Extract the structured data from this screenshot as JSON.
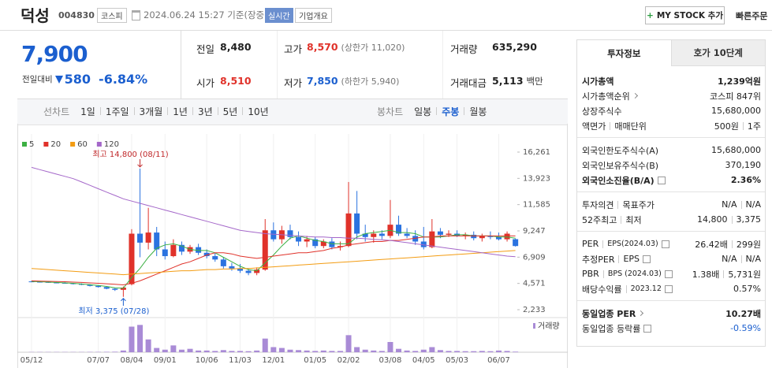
{
  "header": {
    "name": "덕성",
    "code": "004830",
    "market": "코스피",
    "datetime": "2024.06.24 15:27 기준(장중)",
    "realtime": "실시간",
    "overview": "기업개요",
    "mystock": "MY STOCK 추가",
    "quick_order": "빠른주문"
  },
  "price": {
    "current": "7,900",
    "change_label": "전일대비",
    "change": "580",
    "change_pct": "-6.84%"
  },
  "summary": [
    [
      {
        "label": "전일",
        "value": "8,480"
      },
      {
        "label": "고가",
        "value": "8,570",
        "color": "#e0322a",
        "note": "(상한가 11,020)"
      },
      {
        "label": "거래량",
        "value": "635,290"
      }
    ],
    [
      {
        "label": "시가",
        "value": "8,510",
        "color": "#e0322a"
      },
      {
        "label": "저가",
        "value": "7,850",
        "color": "#1b5fcf",
        "note": "(하한가 5,940)"
      },
      {
        "label": "거래대금",
        "value": "5,113",
        "unit": "백만"
      }
    ]
  ],
  "chart_tabs": {
    "line": [
      "선차트",
      "1일",
      "1주일",
      "3개월",
      "1년",
      "3년",
      "5년",
      "10년"
    ],
    "candle": [
      "봉차트",
      "일봉",
      "주봉",
      "월봉"
    ],
    "selected_candle": 2
  },
  "chart_data": {
    "type": "candlestick",
    "categories": [
      "05/12",
      null,
      null,
      null,
      null,
      null,
      null,
      null,
      "07/07",
      null,
      null,
      null,
      "08/04",
      null,
      null,
      null,
      "09/01",
      null,
      null,
      null,
      null,
      "10/06",
      null,
      null,
      null,
      "11/03",
      null,
      null,
      null,
      "12/01",
      null,
      null,
      null,
      null,
      "01/05",
      null,
      null,
      null,
      "02/02",
      null,
      null,
      null,
      null,
      "03/08",
      null,
      null,
      null,
      "04/05",
      null,
      null,
      null,
      "05/03",
      null,
      null,
      null,
      null,
      "06/07",
      null,
      null
    ],
    "open": [
      4750,
      4720,
      4700,
      4650,
      4620,
      4580,
      4520,
      4450,
      4350,
      4250,
      4100,
      4000,
      4500,
      9000,
      8200,
      9100,
      7600,
      7000,
      8000,
      7400,
      7800,
      7300,
      7000,
      6700,
      6100,
      5900,
      5700,
      5500,
      5800,
      9300,
      8500,
      9300,
      8700,
      8300,
      8500,
      7900,
      8300,
      7800,
      7900,
      10800,
      9000,
      8700,
      9000,
      8800,
      9800,
      9000,
      8800,
      8300,
      7800,
      9200,
      8900,
      9000,
      8800,
      8900,
      8600,
      8800,
      8700,
      8500,
      8510
    ],
    "high": [
      4800,
      4780,
      4760,
      4700,
      4680,
      4620,
      4580,
      4500,
      4400,
      4300,
      4150,
      4300,
      9400,
      14800,
      11300,
      9600,
      8300,
      8500,
      8300,
      8000,
      8100,
      7600,
      7300,
      6900,
      6400,
      6300,
      5900,
      6000,
      10300,
      10000,
      9700,
      9800,
      9200,
      8800,
      8700,
      8500,
      8600,
      8300,
      13600,
      12800,
      9800,
      9300,
      9300,
      12000,
      10600,
      9500,
      9300,
      9600,
      10300,
      9500,
      9300,
      9300,
      9100,
      9200,
      9000,
      9200,
      9100,
      9200,
      8570
    ],
    "low": [
      4680,
      4650,
      4620,
      4580,
      4550,
      4480,
      4420,
      4300,
      4200,
      4050,
      3900,
      3375,
      4400,
      6900,
      7600,
      7000,
      6700,
      6900,
      7100,
      7200,
      7100,
      6800,
      6500,
      5900,
      5700,
      5500,
      5300,
      5300,
      5700,
      8300,
      8100,
      8500,
      7900,
      7800,
      7700,
      7700,
      7600,
      7500,
      7800,
      8500,
      8300,
      8200,
      8500,
      8600,
      8800,
      8600,
      8000,
      7600,
      7700,
      8600,
      8700,
      8700,
      8500,
      8400,
      8300,
      8500,
      8400,
      8300,
      7850
    ],
    "close": [
      4720,
      4700,
      4650,
      4620,
      4580,
      4520,
      4450,
      4350,
      4250,
      4100,
      4000,
      4200,
      9000,
      8200,
      9100,
      7600,
      7000,
      8000,
      7400,
      7800,
      7300,
      7000,
      6700,
      6100,
      5900,
      5700,
      5500,
      5800,
      9300,
      8500,
      9300,
      8700,
      8300,
      8500,
      7900,
      8300,
      7800,
      7900,
      10800,
      9000,
      8700,
      9000,
      8800,
      9800,
      9000,
      8800,
      8300,
      7800,
      9200,
      8900,
      9000,
      8800,
      8900,
      8600,
      8800,
      8700,
      8500,
      9000,
      7900
    ],
    "up_color": "#e0322a",
    "down_color": "#2b73e0",
    "series": [
      {
        "name": "5",
        "color": "#3cb043",
        "values": [
          4750,
          4720,
          4690,
          4660,
          4620,
          4580,
          4520,
          4460,
          4390,
          4300,
          4180,
          4150,
          5100,
          5900,
          6900,
          7700,
          8000,
          8100,
          7900,
          7600,
          7500,
          7500,
          7300,
          6900,
          6500,
          6100,
          5800,
          5700,
          6400,
          7100,
          7900,
          8600,
          8800,
          8600,
          8400,
          8300,
          8100,
          8100,
          8100,
          8700,
          9000,
          9100,
          9200,
          9300,
          9100,
          9100,
          9000,
          8700,
          8700,
          8700,
          8800,
          8900,
          8900,
          8800,
          8800,
          8800,
          8700,
          8700,
          8600
        ]
      },
      {
        "name": "20",
        "color": "#e0322a",
        "values": [
          4800,
          4780,
          4760,
          4740,
          4720,
          4690,
          4660,
          4620,
          4580,
          4540,
          4490,
          4440,
          4580,
          4800,
          5100,
          5400,
          5700,
          6000,
          6300,
          6500,
          6800,
          7100,
          7300,
          7300,
          7200,
          7000,
          6900,
          6800,
          6900,
          7000,
          7100,
          7200,
          7300,
          7300,
          7400,
          7500,
          7700,
          7800,
          8000,
          8100,
          8200,
          8300,
          8300,
          8400,
          8400,
          8500,
          8600,
          8700,
          8700,
          8800,
          8800,
          8800,
          8800,
          8800,
          8800,
          8800,
          8800,
          8800,
          8800
        ]
      },
      {
        "name": "60",
        "color": "#f39c12",
        "values": [
          5900,
          5850,
          5800,
          5750,
          5700,
          5650,
          5600,
          5550,
          5500,
          5450,
          5400,
          5350,
          5400,
          5450,
          5500,
          5550,
          5600,
          5650,
          5700,
          5700,
          5750,
          5800,
          5800,
          5850,
          5850,
          5900,
          5900,
          5950,
          6000,
          6050,
          6100,
          6150,
          6200,
          6250,
          6300,
          6350,
          6400,
          6450,
          6500,
          6550,
          6600,
          6650,
          6700,
          6750,
          6800,
          6850,
          6900,
          6950,
          7000,
          7050,
          7100,
          7150,
          7200,
          7250,
          7300,
          7350,
          7400,
          7450,
          7500
        ]
      },
      {
        "name": "120",
        "color": "#a467c9",
        "values": [
          14900,
          14700,
          14500,
          14300,
          14100,
          13900,
          13600,
          13300,
          13000,
          12700,
          12400,
          12100,
          11900,
          11700,
          11500,
          11300,
          11100,
          10900,
          10700,
          10500,
          10300,
          10100,
          9900,
          9700,
          9500,
          9300,
          9200,
          9100,
          9000,
          8950,
          8900,
          8850,
          8800,
          8750,
          8700,
          8700,
          8650,
          8650,
          8600,
          8600,
          8550,
          8500,
          8450,
          8400,
          8300,
          8200,
          8100,
          8000,
          7900,
          7800,
          7700,
          7600,
          7500,
          7400,
          7300,
          7200,
          7100,
          7000,
          6950
        ]
      }
    ],
    "ylim": [
      1742,
      17173
    ],
    "yticks": [
      {
        "value": 16261,
        "label": "16,261"
      },
      {
        "value": 13923,
        "label": "13,923"
      },
      {
        "value": 11585,
        "label": "11,585"
      },
      {
        "value": 9247,
        "label": "9,247"
      },
      {
        "value": 6909,
        "label": "6,909"
      },
      {
        "value": 4571,
        "label": "4,571"
      },
      {
        "value": 2233,
        "label": "2,233"
      }
    ],
    "volume": {
      "name": "거래량",
      "color": "#a98bd6",
      "ylim": [
        0,
        36000000
      ],
      "values": [
        300000,
        300000,
        300000,
        300000,
        300000,
        300000,
        300000,
        400000,
        400000,
        500000,
        600000,
        2000000,
        30000000,
        32000000,
        15000000,
        5000000,
        3000000,
        8000000,
        3000000,
        4000000,
        2000000,
        2000000,
        1500000,
        2500000,
        1500000,
        1500000,
        1200000,
        2000000,
        16000000,
        6000000,
        5000000,
        3000000,
        2500000,
        2000000,
        1500000,
        2000000,
        1500000,
        1500000,
        20000000,
        6000000,
        3000000,
        2000000,
        1500000,
        12000000,
        4000000,
        2000000,
        1500000,
        3000000,
        6000000,
        2500000,
        1500000,
        1500000,
        1200000,
        1200000,
        1500000,
        1200000,
        2000000,
        1500000,
        700000
      ]
    },
    "annotations": {
      "high": "최고 14,800 (08/11)",
      "low": "최저 3,375 (07/28)"
    }
  },
  "side_panel": {
    "tabs": [
      "투자정보",
      "호가 10단계"
    ],
    "groups": [
      [
        {
          "label": [
            "시가총액"
          ],
          "value": "1,239억원",
          "bold": true
        },
        {
          "label": [
            "시가총액순위"
          ],
          "icon": "arrow",
          "value": "코스피 847위"
        },
        {
          "label": [
            "상장주식수"
          ],
          "value": "15,680,000"
        },
        {
          "label": [
            "액면가",
            "매매단위"
          ],
          "value": [
            "500원",
            "1주"
          ]
        }
      ],
      [
        {
          "label": [
            "외국인한도주식수(A)"
          ],
          "value": "15,680,000"
        },
        {
          "label": [
            "외국인보유주식수(B)"
          ],
          "value": "370,190"
        },
        {
          "label": [
            "외국인소진율(B/A)"
          ],
          "icon": "help",
          "value": "2.36%",
          "bold": true
        }
      ],
      [
        {
          "label": [
            "투자의견",
            "목표주가"
          ],
          "value": [
            "N/A",
            "N/A"
          ]
        },
        {
          "label": [
            "52주최고",
            "최저"
          ],
          "value": [
            "14,800",
            "3,375"
          ]
        }
      ],
      [
        {
          "label": [
            "PER",
            "EPS(2024.03)"
          ],
          "icon": "help",
          "value": [
            "26.42배",
            "299원"
          ]
        },
        {
          "label": [
            "추정PER",
            "EPS"
          ],
          "icon": "help",
          "value": [
            "N/A",
            "N/A"
          ]
        },
        {
          "label": [
            "PBR",
            "BPS (2024.03)"
          ],
          "icon": "help",
          "value": [
            "1.38배",
            "5,731원"
          ]
        },
        {
          "label": [
            "배당수익률",
            "2023.12"
          ],
          "icon": "help",
          "value": "0.57%"
        }
      ],
      [
        {
          "label": [
            "동일업종 PER"
          ],
          "icon": "arrow",
          "value": "10.27배",
          "bold": true
        },
        {
          "label": [
            "동일업종 등락률"
          ],
          "icon": "help",
          "value": "-0.59%",
          "color": "#1b5fcf"
        }
      ]
    ]
  }
}
